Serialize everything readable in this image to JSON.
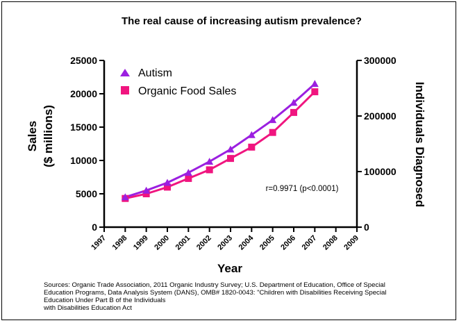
{
  "chart_data": {
    "type": "line",
    "title": "The real cause of increasing autism prevalence?",
    "xlabel": "Year",
    "ylabel_left": [
      "Sales",
      "($ millions)"
    ],
    "ylabel_right": "Individuals Diagnosed",
    "xlim": [
      1997,
      2009
    ],
    "ylim_left": [
      0,
      25000
    ],
    "ylim_right": [
      0,
      300000
    ],
    "x_ticks": [
      "1997",
      "1998",
      "1999",
      "2000",
      "2001",
      "2002",
      "2003",
      "2004",
      "2005",
      "2006",
      "2007",
      "2008",
      "2009"
    ],
    "y_ticks_left": [
      "0",
      "5000",
      "10000",
      "15000",
      "20000",
      "25000"
    ],
    "y_ticks_right": [
      "0",
      "100000",
      "200000",
      "300000"
    ],
    "legend_placement": "top-left",
    "annotation": "r=0.9971 (p<0.0001)",
    "series": [
      {
        "name": "Autism",
        "axis": "right",
        "marker": "triangle",
        "color": "#9b1fe0",
        "x": [
          1998,
          1999,
          2000,
          2001,
          2002,
          2003,
          2004,
          2005,
          2006,
          2007
        ],
        "values": [
          54000,
          66000,
          80000,
          98000,
          118000,
          140000,
          166000,
          193000,
          224000,
          258000
        ]
      },
      {
        "name": "Organic Food Sales",
        "axis": "left",
        "marker": "square",
        "color": "#f0157f",
        "x": [
          1998,
          1999,
          2000,
          2001,
          2002,
          2003,
          2004,
          2005,
          2006,
          2007
        ],
        "values": [
          4300,
          5000,
          6000,
          7300,
          8600,
          10300,
          12000,
          14200,
          17200,
          20300
        ]
      }
    ]
  },
  "sources": [
    "Sources: Organic Trade Association,  2011 Organic Industry Survey; U.S. Department of Education, Office of Special",
    "Education Programs, Data Analysis System (DANS), OMB# 1820-0043: \"Children with Disabilities Receiving Special",
    "Education Under Part B of the Individuals",
    "with Disabilities Education Act"
  ]
}
